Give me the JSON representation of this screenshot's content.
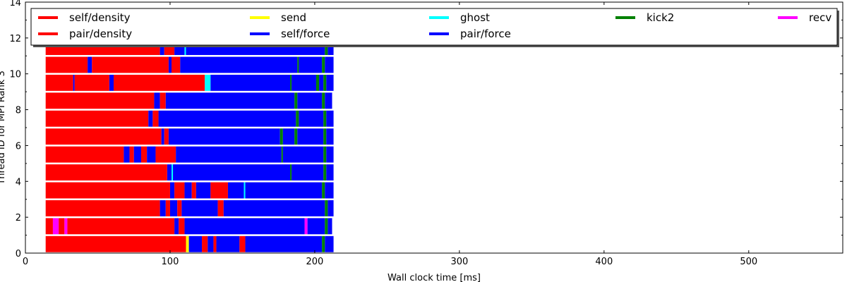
{
  "chart_data": {
    "type": "bar",
    "subtype": "horizontal-timeline",
    "title": "",
    "xlabel": "Wall clock time [ms]",
    "ylabel": "Thread ID for MPI Rank 3",
    "xlim": [
      0,
      565
    ],
    "ylim": [
      0,
      14
    ],
    "x_ticks": [
      0,
      100,
      200,
      300,
      400,
      500
    ],
    "y_ticks": [
      0,
      2,
      4,
      6,
      8,
      10,
      12,
      14
    ],
    "grid": false,
    "legend_position": "top",
    "legend": [
      {
        "name": "self/density",
        "color": "#ff0000"
      },
      {
        "name": "send",
        "color": "#ffff00"
      },
      {
        "name": "ghost",
        "color": "#00ffff"
      },
      {
        "name": "kick2",
        "color": "#008000"
      },
      {
        "name": "recv",
        "color": "#ff00ff"
      },
      {
        "name": "pair/density",
        "color": "#ff0000"
      },
      {
        "name": "self/force",
        "color": "#0000ff"
      },
      {
        "name": "pair/force",
        "color": "#0000ff"
      }
    ],
    "series": [
      {
        "thread": 0,
        "segments": [
          {
            "task": "pair/density",
            "start": 14,
            "end": 111
          },
          {
            "task": "send",
            "start": 111,
            "end": 113
          },
          {
            "task": "pair/force",
            "start": 113,
            "end": 122
          },
          {
            "task": "self/density",
            "start": 122,
            "end": 126
          },
          {
            "task": "pair/force",
            "start": 126,
            "end": 130
          },
          {
            "task": "self/density",
            "start": 130,
            "end": 132
          },
          {
            "task": "pair/force",
            "start": 132,
            "end": 148
          },
          {
            "task": "self/density",
            "start": 148,
            "end": 152
          },
          {
            "task": "pair/force",
            "start": 152,
            "end": 205
          },
          {
            "task": "kick2",
            "start": 205,
            "end": 207
          },
          {
            "task": "pair/force",
            "start": 207,
            "end": 213
          }
        ]
      },
      {
        "thread": 1,
        "segments": [
          {
            "task": "self/density",
            "start": 14,
            "end": 19
          },
          {
            "task": "recv",
            "start": 19,
            "end": 23
          },
          {
            "task": "self/density",
            "start": 23,
            "end": 27
          },
          {
            "task": "recv",
            "start": 27,
            "end": 29
          },
          {
            "task": "self/density",
            "start": 29,
            "end": 103
          },
          {
            "task": "pair/force",
            "start": 103,
            "end": 106
          },
          {
            "task": "self/density",
            "start": 106,
            "end": 110
          },
          {
            "task": "pair/force",
            "start": 110,
            "end": 193
          },
          {
            "task": "recv",
            "start": 193,
            "end": 195
          },
          {
            "task": "pair/force",
            "start": 195,
            "end": 207
          },
          {
            "task": "kick2",
            "start": 207,
            "end": 209
          },
          {
            "task": "pair/force",
            "start": 209,
            "end": 212
          }
        ]
      },
      {
        "thread": 2,
        "segments": [
          {
            "task": "self/density",
            "start": 14,
            "end": 93
          },
          {
            "task": "self/force",
            "start": 93,
            "end": 97
          },
          {
            "task": "self/density",
            "start": 97,
            "end": 100
          },
          {
            "task": "self/force",
            "start": 100,
            "end": 105
          },
          {
            "task": "self/density",
            "start": 105,
            "end": 108
          },
          {
            "task": "self/force",
            "start": 108,
            "end": 133
          },
          {
            "task": "self/density",
            "start": 133,
            "end": 137
          },
          {
            "task": "self/force",
            "start": 137,
            "end": 207
          },
          {
            "task": "kick2",
            "start": 207,
            "end": 209
          },
          {
            "task": "self/force",
            "start": 209,
            "end": 213
          }
        ]
      },
      {
        "thread": 3,
        "segments": [
          {
            "task": "self/density",
            "start": 14,
            "end": 100
          },
          {
            "task": "self/force",
            "start": 100,
            "end": 103
          },
          {
            "task": "self/density",
            "start": 103,
            "end": 110
          },
          {
            "task": "self/force",
            "start": 110,
            "end": 115
          },
          {
            "task": "self/density",
            "start": 115,
            "end": 118
          },
          {
            "task": "self/force",
            "start": 118,
            "end": 128
          },
          {
            "task": "self/density",
            "start": 128,
            "end": 140
          },
          {
            "task": "self/force",
            "start": 140,
            "end": 151
          },
          {
            "task": "ghost",
            "start": 151,
            "end": 152
          },
          {
            "task": "self/force",
            "start": 152,
            "end": 205
          },
          {
            "task": "kick2",
            "start": 205,
            "end": 207
          },
          {
            "task": "self/force",
            "start": 207,
            "end": 213
          }
        ]
      },
      {
        "thread": 4,
        "segments": [
          {
            "task": "self/density",
            "start": 14,
            "end": 98
          },
          {
            "task": "self/force",
            "start": 98,
            "end": 101
          },
          {
            "task": "ghost",
            "start": 101,
            "end": 102
          },
          {
            "task": "self/force",
            "start": 102,
            "end": 183
          },
          {
            "task": "kick2",
            "start": 183,
            "end": 184
          },
          {
            "task": "self/force",
            "start": 184,
            "end": 206
          },
          {
            "task": "kick2",
            "start": 206,
            "end": 208
          },
          {
            "task": "self/force",
            "start": 208,
            "end": 213
          }
        ]
      },
      {
        "thread": 5,
        "segments": [
          {
            "task": "self/density",
            "start": 14,
            "end": 68
          },
          {
            "task": "self/force",
            "start": 68,
            "end": 72
          },
          {
            "task": "self/density",
            "start": 72,
            "end": 75
          },
          {
            "task": "self/force",
            "start": 75,
            "end": 80
          },
          {
            "task": "self/density",
            "start": 80,
            "end": 84
          },
          {
            "task": "self/force",
            "start": 84,
            "end": 90
          },
          {
            "task": "self/density",
            "start": 90,
            "end": 104
          },
          {
            "task": "self/force",
            "start": 104,
            "end": 177
          },
          {
            "task": "kick2",
            "start": 177,
            "end": 178
          },
          {
            "task": "self/force",
            "start": 178,
            "end": 206
          },
          {
            "task": "kick2",
            "start": 206,
            "end": 208
          },
          {
            "task": "self/force",
            "start": 208,
            "end": 213
          }
        ]
      },
      {
        "thread": 6,
        "segments": [
          {
            "task": "self/density",
            "start": 14,
            "end": 94
          },
          {
            "task": "self/force",
            "start": 94,
            "end": 96
          },
          {
            "task": "self/density",
            "start": 96,
            "end": 99
          },
          {
            "task": "self/force",
            "start": 99,
            "end": 176
          },
          {
            "task": "kick2",
            "start": 176,
            "end": 178
          },
          {
            "task": "self/force",
            "start": 178,
            "end": 186
          },
          {
            "task": "kick2",
            "start": 186,
            "end": 188
          },
          {
            "task": "self/force",
            "start": 188,
            "end": 206
          },
          {
            "task": "kick2",
            "start": 206,
            "end": 208
          },
          {
            "task": "self/force",
            "start": 208,
            "end": 213
          }
        ]
      },
      {
        "thread": 7,
        "segments": [
          {
            "task": "self/density",
            "start": 14,
            "end": 85
          },
          {
            "task": "self/force",
            "start": 85,
            "end": 88
          },
          {
            "task": "self/density",
            "start": 88,
            "end": 92
          },
          {
            "task": "self/force",
            "start": 92,
            "end": 187
          },
          {
            "task": "kick2",
            "start": 187,
            "end": 189
          },
          {
            "task": "self/force",
            "start": 189,
            "end": 206
          },
          {
            "task": "kick2",
            "start": 206,
            "end": 208
          },
          {
            "task": "self/force",
            "start": 208,
            "end": 213
          }
        ]
      },
      {
        "thread": 8,
        "segments": [
          {
            "task": "self/density",
            "start": 14,
            "end": 89
          },
          {
            "task": "self/force",
            "start": 89,
            "end": 93
          },
          {
            "task": "self/density",
            "start": 93,
            "end": 97
          },
          {
            "task": "self/force",
            "start": 97,
            "end": 186
          },
          {
            "task": "kick2",
            "start": 186,
            "end": 188
          },
          {
            "task": "self/force",
            "start": 188,
            "end": 205
          },
          {
            "task": "kick2",
            "start": 205,
            "end": 207
          },
          {
            "task": "self/force",
            "start": 207,
            "end": 212
          }
        ]
      },
      {
        "thread": 9,
        "segments": [
          {
            "task": "self/density",
            "start": 14,
            "end": 33
          },
          {
            "task": "self/force",
            "start": 33,
            "end": 34
          },
          {
            "task": "self/density",
            "start": 34,
            "end": 58
          },
          {
            "task": "self/force",
            "start": 58,
            "end": 61
          },
          {
            "task": "self/density",
            "start": 61,
            "end": 124
          },
          {
            "task": "ghost",
            "start": 124,
            "end": 128
          },
          {
            "task": "self/force",
            "start": 128,
            "end": 183
          },
          {
            "task": "kick2",
            "start": 183,
            "end": 184
          },
          {
            "task": "self/force",
            "start": 184,
            "end": 201
          },
          {
            "task": "kick2",
            "start": 201,
            "end": 203
          },
          {
            "task": "self/force",
            "start": 203,
            "end": 206
          },
          {
            "task": "kick2",
            "start": 206,
            "end": 208
          },
          {
            "task": "self/force",
            "start": 208,
            "end": 213
          }
        ]
      },
      {
        "thread": 10,
        "segments": [
          {
            "task": "self/density",
            "start": 14,
            "end": 43
          },
          {
            "task": "self/force",
            "start": 43,
            "end": 46
          },
          {
            "task": "self/density",
            "start": 46,
            "end": 99
          },
          {
            "task": "self/force",
            "start": 99,
            "end": 101
          },
          {
            "task": "self/density",
            "start": 101,
            "end": 107
          },
          {
            "task": "self/force",
            "start": 107,
            "end": 188
          },
          {
            "task": "kick2",
            "start": 188,
            "end": 189
          },
          {
            "task": "self/force",
            "start": 189,
            "end": 205
          },
          {
            "task": "kick2",
            "start": 205,
            "end": 207
          },
          {
            "task": "self/force",
            "start": 207,
            "end": 213
          }
        ]
      },
      {
        "thread": 11,
        "segments": [
          {
            "task": "self/density",
            "start": 14,
            "end": 93
          },
          {
            "task": "self/force",
            "start": 93,
            "end": 96
          },
          {
            "task": "self/density",
            "start": 96,
            "end": 103
          },
          {
            "task": "self/force",
            "start": 103,
            "end": 110
          },
          {
            "task": "ghost",
            "start": 110,
            "end": 111
          },
          {
            "task": "self/force",
            "start": 111,
            "end": 207
          },
          {
            "task": "kick2",
            "start": 207,
            "end": 209
          },
          {
            "task": "self/force",
            "start": 209,
            "end": 213
          }
        ]
      }
    ]
  }
}
